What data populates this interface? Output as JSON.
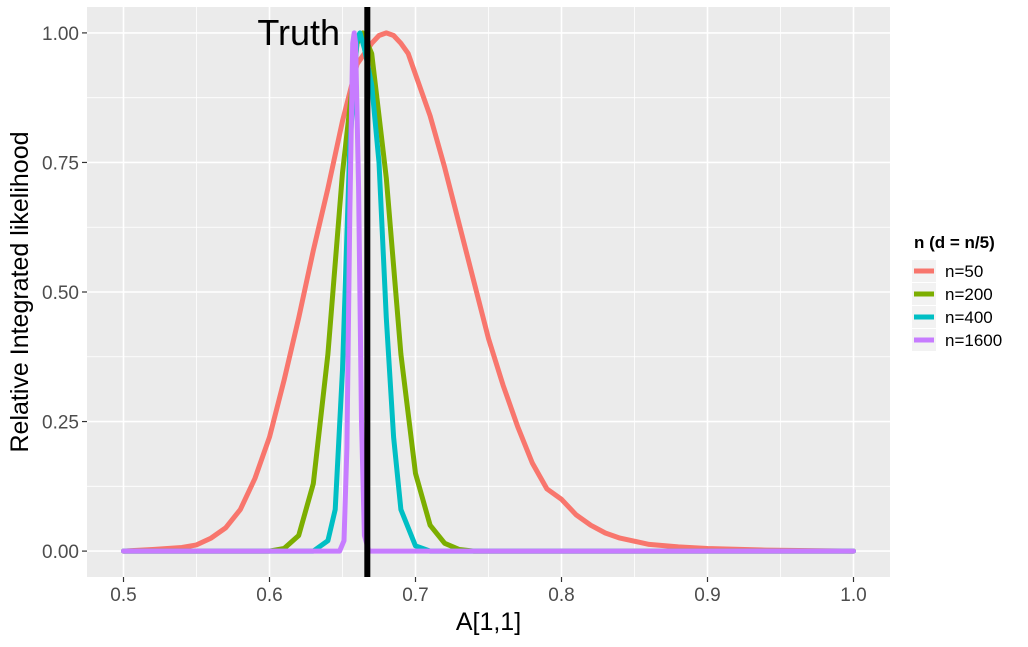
{
  "chart_data": {
    "type": "line",
    "title": "",
    "xlabel": "A[1,1]",
    "ylabel": "Relative Integrated likelihood",
    "xlim": [
      0.475,
      1.025
    ],
    "ylim": [
      -0.05,
      1.05
    ],
    "x_ticks": [
      0.5,
      0.6,
      0.7,
      0.8,
      0.9,
      1.0
    ],
    "x_tick_labels": [
      "0.5",
      "0.6",
      "0.7",
      "0.8",
      "0.9",
      "1.0"
    ],
    "y_ticks": [
      0.0,
      0.25,
      0.5,
      0.75,
      1.0
    ],
    "y_tick_labels": [
      "0.00",
      "0.25",
      "0.50",
      "0.75",
      "1.00"
    ],
    "grid": true,
    "background": "#ebebeb",
    "legend": {
      "title": "n (d = n/5)",
      "position": "right",
      "entries": [
        "n=50",
        "n=200",
        "n=400",
        "n=1600"
      ]
    },
    "vline": {
      "x": 0.667,
      "color": "#000000"
    },
    "annotations": [
      {
        "text": "Truth",
        "x": 0.62,
        "y": 1.0
      }
    ],
    "series": [
      {
        "name": "n=50",
        "color": "#F8766D",
        "points": [
          [
            0.5,
            0.0
          ],
          [
            0.52,
            0.003
          ],
          [
            0.54,
            0.007
          ],
          [
            0.55,
            0.012
          ],
          [
            0.56,
            0.025
          ],
          [
            0.57,
            0.045
          ],
          [
            0.58,
            0.08
          ],
          [
            0.59,
            0.14
          ],
          [
            0.6,
            0.22
          ],
          [
            0.61,
            0.33
          ],
          [
            0.62,
            0.45
          ],
          [
            0.63,
            0.58
          ],
          [
            0.64,
            0.7
          ],
          [
            0.65,
            0.83
          ],
          [
            0.66,
            0.94
          ],
          [
            0.67,
            0.98
          ],
          [
            0.675,
            0.995
          ],
          [
            0.68,
            1.0
          ],
          [
            0.685,
            0.995
          ],
          [
            0.69,
            0.98
          ],
          [
            0.695,
            0.96
          ],
          [
            0.7,
            0.92
          ],
          [
            0.71,
            0.84
          ],
          [
            0.72,
            0.74
          ],
          [
            0.73,
            0.63
          ],
          [
            0.74,
            0.52
          ],
          [
            0.75,
            0.41
          ],
          [
            0.76,
            0.32
          ],
          [
            0.77,
            0.24
          ],
          [
            0.78,
            0.17
          ],
          [
            0.79,
            0.12
          ],
          [
            0.8,
            0.1
          ],
          [
            0.81,
            0.07
          ],
          [
            0.82,
            0.05
          ],
          [
            0.83,
            0.035
          ],
          [
            0.84,
            0.025
          ],
          [
            0.86,
            0.013
          ],
          [
            0.88,
            0.008
          ],
          [
            0.9,
            0.005
          ],
          [
            0.94,
            0.002
          ],
          [
            1.0,
            0.0
          ]
        ]
      },
      {
        "name": "n=200",
        "color": "#7CAE00",
        "points": [
          [
            0.5,
            0.0
          ],
          [
            0.6,
            0.0
          ],
          [
            0.61,
            0.005
          ],
          [
            0.62,
            0.03
          ],
          [
            0.63,
            0.13
          ],
          [
            0.64,
            0.38
          ],
          [
            0.65,
            0.73
          ],
          [
            0.66,
            0.98
          ],
          [
            0.664,
            1.0
          ],
          [
            0.67,
            0.96
          ],
          [
            0.68,
            0.72
          ],
          [
            0.69,
            0.38
          ],
          [
            0.7,
            0.15
          ],
          [
            0.71,
            0.05
          ],
          [
            0.72,
            0.015
          ],
          [
            0.73,
            0.003
          ],
          [
            0.74,
            0.0
          ],
          [
            1.0,
            0.0
          ]
        ]
      },
      {
        "name": "n=400",
        "color": "#00BFC4",
        "points": [
          [
            0.5,
            0.0
          ],
          [
            0.63,
            0.0
          ],
          [
            0.64,
            0.02
          ],
          [
            0.645,
            0.08
          ],
          [
            0.65,
            0.35
          ],
          [
            0.655,
            0.78
          ],
          [
            0.66,
            0.99
          ],
          [
            0.662,
            1.0
          ],
          [
            0.665,
            0.97
          ],
          [
            0.67,
            0.9
          ],
          [
            0.675,
            0.75
          ],
          [
            0.68,
            0.45
          ],
          [
            0.685,
            0.22
          ],
          [
            0.69,
            0.08
          ],
          [
            0.7,
            0.01
          ],
          [
            0.71,
            0.0
          ],
          [
            1.0,
            0.0
          ]
        ]
      },
      {
        "name": "n=1600",
        "color": "#C77CFF",
        "points": [
          [
            0.5,
            0.0
          ],
          [
            0.648,
            0.0
          ],
          [
            0.651,
            0.02
          ],
          [
            0.653,
            0.2
          ],
          [
            0.655,
            0.65
          ],
          [
            0.657,
            0.98
          ],
          [
            0.658,
            1.0
          ],
          [
            0.659,
            0.98
          ],
          [
            0.661,
            0.7
          ],
          [
            0.663,
            0.25
          ],
          [
            0.665,
            0.03
          ],
          [
            0.668,
            0.0
          ],
          [
            1.0,
            0.0
          ]
        ]
      }
    ]
  }
}
